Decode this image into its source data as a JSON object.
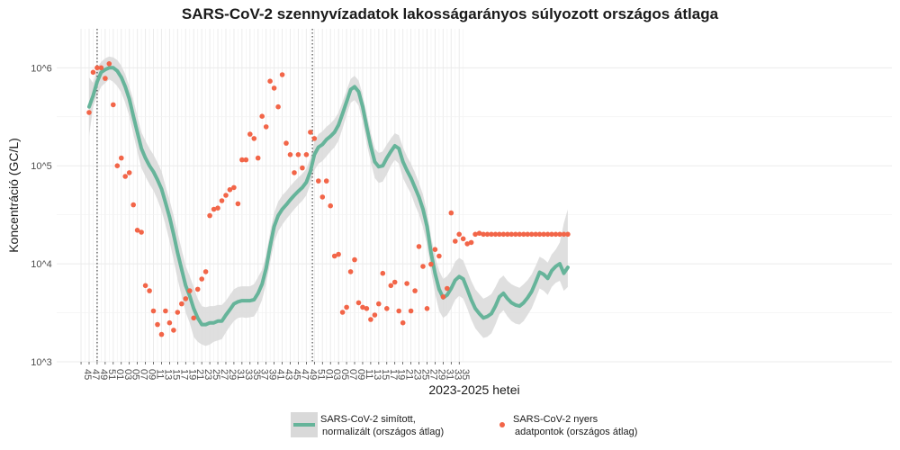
{
  "chart_data": {
    "type": "line",
    "title": "SARS-CoV-2 szennyvízadatok lakosságarányos súlyozott országos átlaga",
    "xlabel": "2023-2025 hetei",
    "ylabel": "Koncentráció (GC/L)",
    "y_scale": "log10",
    "ylim": [
      1000,
      2500000
    ],
    "y_ticks": [
      {
        "value": 1000,
        "label": "10^3"
      },
      {
        "value": 10000,
        "label": "10^4"
      },
      {
        "value": 100000,
        "label": "10^5"
      },
      {
        "value": 1000000,
        "label": "10^6"
      }
    ],
    "x_tick_labels": [
      "45",
      "47",
      "49",
      "51",
      "01",
      "03",
      "05",
      "07",
      "09",
      "11",
      "13",
      "15",
      "17",
      "19",
      "21",
      "23",
      "25",
      "27",
      "29",
      "31",
      "33",
      "35",
      "37",
      "39",
      "41",
      "43",
      "45",
      "47",
      "49",
      "51",
      "01",
      "03",
      "05",
      "07",
      "09",
      "11",
      "13",
      "15",
      "17",
      "19",
      "21",
      "23",
      "25",
      "27",
      "29",
      "31",
      "33",
      "35"
    ],
    "x_tick_start_index": -2,
    "year_boundaries": [
      2,
      55.5
    ],
    "grid": true,
    "legend_placement": "bottom",
    "colors": {
      "smooth": "#66b49a",
      "band": "#d9d9d9",
      "points": "#f26548"
    },
    "series": [
      {
        "name": "SARS-CoV-2 simított,\nnormalizált (országos átlag)",
        "kind": "smoothed",
        "x": [
          0,
          1,
          2,
          3,
          4,
          5,
          6,
          7,
          8,
          9,
          10,
          11,
          12,
          13,
          14,
          15,
          16,
          17,
          18,
          19,
          20,
          21,
          22,
          23,
          24,
          25,
          26,
          27,
          28,
          29,
          30,
          31,
          32,
          33,
          34,
          35,
          36,
          37,
          38,
          39,
          40,
          41,
          42,
          43,
          44,
          45,
          46,
          47,
          48,
          49,
          50,
          51,
          52,
          53,
          54,
          55,
          56,
          57,
          58,
          59,
          60,
          61,
          62,
          63,
          64,
          65,
          66,
          67,
          68,
          69,
          70,
          71,
          72,
          73,
          74,
          75,
          76,
          77,
          78,
          79,
          80,
          81,
          82,
          83,
          84,
          85,
          86,
          87,
          88,
          89,
          90,
          91,
          92,
          93,
          94,
          95,
          96,
          97,
          98,
          99,
          100,
          101,
          102,
          103,
          104,
          105,
          106,
          107,
          108,
          109,
          110,
          111,
          112,
          113,
          114,
          115,
          116,
          117,
          118,
          119
        ],
        "values": [
          400000,
          520000,
          720000,
          900000,
          960000,
          1000000,
          1000000,
          930000,
          800000,
          640000,
          480000,
          320000,
          220000,
          150000,
          120000,
          100000,
          87000,
          72000,
          58000,
          42000,
          30000,
          20000,
          13000,
          8800,
          6000,
          4700,
          3500,
          2800,
          2400,
          2400,
          2500,
          2500,
          2600,
          2600,
          3000,
          3400,
          3900,
          4100,
          4200,
          4200,
          4200,
          4300,
          5000,
          6200,
          9000,
          15000,
          24000,
          31000,
          36000,
          40000,
          45000,
          50000,
          55000,
          60000,
          68000,
          88000,
          130000,
          155000,
          165000,
          185000,
          200000,
          220000,
          260000,
          340000,
          450000,
          600000,
          640000,
          570000,
          400000,
          250000,
          160000,
          110000,
          98000,
          100000,
          120000,
          140000,
          160000,
          150000,
          110000,
          90000,
          75000,
          60000,
          48000,
          36000,
          24000,
          13000,
          8000,
          5500,
          4500,
          4800,
          5600,
          6800,
          7400,
          7000,
          5500,
          4300,
          3500,
          3100,
          2800,
          2900,
          3100,
          3700,
          4600,
          5000,
          4400,
          4000,
          3800,
          3700,
          4000,
          4500,
          5200,
          6500,
          8200,
          7800,
          7100,
          8500,
          9400,
          10000,
          8000,
          9200
        ],
        "ci_lower": [
          200000,
          400000,
          520000,
          640000,
          700000,
          760000,
          720000,
          650000,
          560000,
          440000,
          320000,
          210000,
          140000,
          95000,
          78000,
          65000,
          56000,
          45000,
          35000,
          25000,
          17000,
          11000,
          7000,
          4700,
          3200,
          2500,
          1800,
          1600,
          1500,
          1450,
          1500,
          1600,
          1650,
          1700,
          2000,
          2300,
          2600,
          2800,
          2850,
          2800,
          2850,
          2900,
          3400,
          4300,
          6300,
          10200,
          16500,
          21500,
          25000,
          28500,
          32000,
          36000,
          40000,
          44000,
          50000,
          65000,
          90000,
          105000,
          112000,
          125000,
          140000,
          155000,
          180000,
          240000,
          330000,
          440000,
          470000,
          410000,
          280000,
          170000,
          110000,
          75000,
          67000,
          69000,
          82000,
          100000,
          115000,
          105000,
          75000,
          62000,
          52000,
          40000,
          32000,
          23500,
          15500,
          8500,
          5000,
          3300,
          2800,
          3000,
          3500,
          4300,
          4700,
          4400,
          3500,
          2700,
          2200,
          1950,
          1750,
          1800,
          1950,
          2400,
          3050,
          3350,
          2900,
          2600,
          2450,
          2400,
          2600,
          3000,
          3500,
          4400,
          5600,
          5300,
          4800,
          5800,
          6400,
          6700,
          5300,
          5800
        ],
        "ci_upper": [
          800000,
          700000,
          1000000,
          1150000,
          1250000,
          1300000,
          1280000,
          1200000,
          1050000,
          860000,
          640000,
          470000,
          320000,
          220000,
          180000,
          150000,
          130000,
          108000,
          88000,
          62000,
          45000,
          31000,
          21000,
          14000,
          9500,
          7500,
          5800,
          4400,
          3700,
          3600,
          3700,
          3700,
          3800,
          3800,
          4200,
          4800,
          5500,
          5800,
          5900,
          5900,
          5900,
          6200,
          7300,
          8700,
          12500,
          21000,
          33000,
          43000,
          50000,
          55000,
          62000,
          69000,
          76000,
          83000,
          93000,
          120000,
          175000,
          210000,
          225000,
          250000,
          270000,
          300000,
          350000,
          450000,
          590000,
          770000,
          830000,
          740000,
          530000,
          340000,
          220000,
          150000,
          135000,
          140000,
          165000,
          190000,
          215000,
          205000,
          155000,
          125000,
          105000,
          85000,
          67000,
          51000,
          34000,
          19000,
          12000,
          8500,
          7000,
          7500,
          8500,
          10500,
          11500,
          10800,
          8500,
          6700,
          5500,
          4900,
          4400,
          4600,
          4900,
          5800,
          7000,
          7600,
          6700,
          6200,
          5900,
          5700,
          6200,
          6800,
          7800,
          9500,
          11800,
          11200,
          10300,
          12500,
          14000,
          16500,
          26000,
          36000
        ],
        "color": "#66b49a"
      },
      {
        "name": "SARS-CoV-2 nyers\nadatpontok (országos átlag)",
        "kind": "scatter",
        "x": [
          0,
          1,
          2,
          3,
          4,
          5,
          6,
          7,
          8,
          9,
          10,
          11,
          12,
          13,
          14,
          15,
          16,
          17,
          18,
          19,
          20,
          21,
          22,
          23,
          24,
          25,
          26,
          27,
          28,
          29,
          30,
          31,
          32,
          33,
          34,
          35,
          36,
          37,
          38,
          39,
          40,
          41,
          42,
          43,
          44,
          45,
          46,
          47,
          48,
          49,
          50,
          51,
          52,
          53,
          54,
          55,
          56,
          57,
          58,
          59,
          60,
          61,
          62,
          63,
          64,
          65,
          66,
          67,
          68,
          69,
          70,
          71,
          72,
          73,
          74,
          75,
          76,
          77,
          78,
          79,
          80,
          81,
          82,
          83,
          84,
          85,
          86,
          87,
          88,
          89,
          90,
          91,
          92,
          93,
          94,
          95,
          96,
          97,
          98,
          99,
          100,
          101,
          102,
          103,
          104,
          105,
          106,
          107,
          108,
          109,
          110,
          111,
          112,
          113,
          114,
          115,
          116,
          117,
          118,
          119
        ],
        "values": [
          350000,
          900000,
          1000000,
          1000000,
          780000,
          1100000,
          420000,
          100000,
          120000,
          78000,
          85000,
          40000,
          22000,
          21000,
          6000,
          5300,
          3300,
          2400,
          1900,
          3300,
          2500,
          2100,
          3200,
          3900,
          4400,
          5300,
          2800,
          5500,
          7000,
          8300,
          31000,
          36000,
          37000,
          44000,
          50000,
          57000,
          60000,
          41000,
          115000,
          115000,
          210000,
          190000,
          120000,
          320000,
          250000,
          730000,
          620000,
          400000,
          850000,
          170000,
          130000,
          85000,
          130000,
          95000,
          130000,
          220000,
          190000,
          70000,
          48000,
          70000,
          39000,
          12000,
          12500,
          3200,
          3600,
          8300,
          11000,
          4000,
          3600,
          3500,
          2700,
          3000,
          3900,
          8000,
          3500,
          6000,
          6500,
          3300,
          2500,
          6300,
          3300,
          5300,
          15000,
          9400,
          3500,
          9900,
          14000,
          12000,
          4600,
          5600,
          33000,
          17000,
          20000,
          18000,
          16000,
          16500,
          20000,
          20500,
          20000,
          20000,
          20000,
          20000,
          20000,
          20000,
          20000,
          20000,
          20000,
          20000,
          20000,
          20000,
          20000,
          20000,
          20000,
          20000,
          20000,
          20000,
          20000,
          20000,
          20000,
          20000
        ],
        "color": "#f26548"
      }
    ]
  }
}
